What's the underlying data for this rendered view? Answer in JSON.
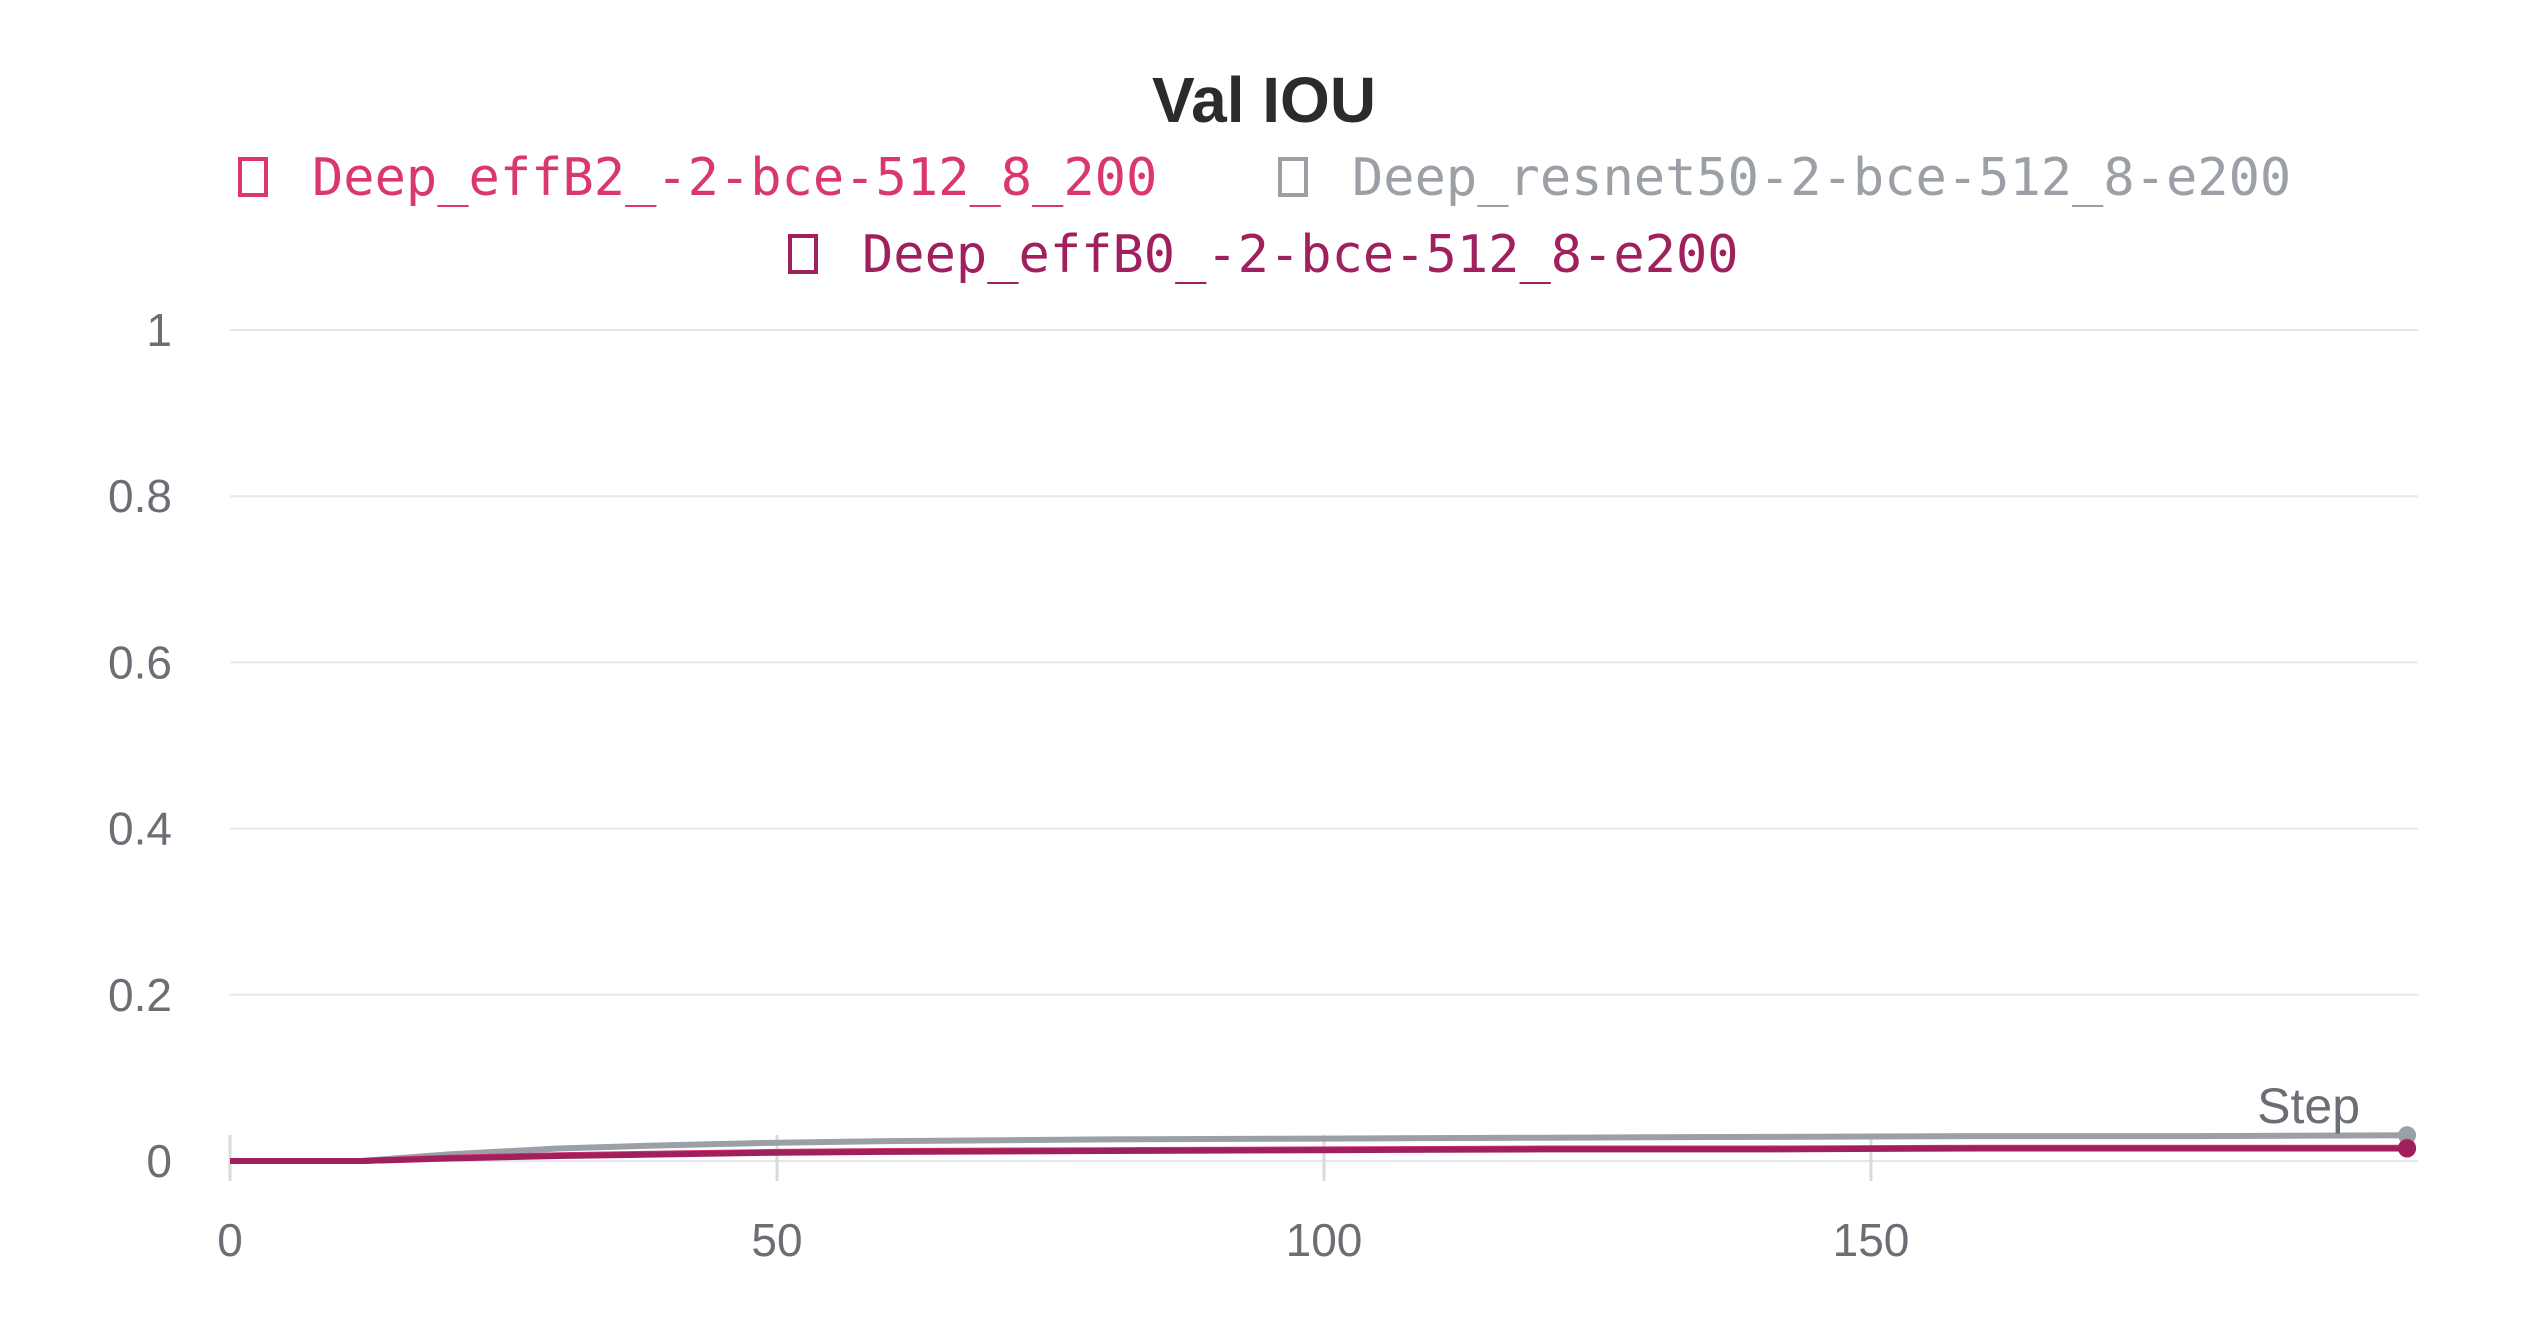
{
  "chart_data": {
    "type": "line",
    "title": "Val IOU",
    "xlabel": "Step",
    "ylabel": "",
    "xlim": [
      0,
      200
    ],
    "ylim": [
      0,
      1
    ],
    "x_ticks": [
      0,
      50,
      100,
      150
    ],
    "y_ticks": [
      0,
      0.2,
      0.4,
      0.6,
      0.8,
      1
    ],
    "y_tick_labels": [
      "0",
      "0.2",
      "0.4",
      "0.6",
      "0.8",
      "1"
    ],
    "grid": true,
    "legend_placement": "top",
    "series": [
      {
        "name": "Deep_effB2_-2-bce-512_8_200",
        "color": "#d9376e",
        "x": [
          0,
          12,
          20,
          30,
          40,
          50,
          60,
          80,
          100,
          120,
          140,
          160,
          180,
          199
        ],
        "y": [
          0,
          0,
          0.004,
          0.007,
          0.009,
          0.011,
          0.012,
          0.013,
          0.014,
          0.015,
          0.015,
          0.016,
          0.016,
          0.016
        ]
      },
      {
        "name": "Deep_resnet50-2-bce-512_8-e200",
        "color": "#9aa0a6",
        "x": [
          0,
          12,
          20,
          30,
          40,
          50,
          60,
          80,
          100,
          120,
          140,
          160,
          180,
          199
        ],
        "y": [
          0,
          0,
          0.008,
          0.015,
          0.019,
          0.022,
          0.024,
          0.026,
          0.027,
          0.028,
          0.029,
          0.03,
          0.03,
          0.031
        ]
      },
      {
        "name": "Deep_effB0_-2-bce-512_8-e200",
        "color": "#a0205e",
        "x": [
          0,
          12,
          20,
          30,
          40,
          50,
          60,
          80,
          100,
          120,
          140,
          160,
          180,
          199
        ],
        "y": [
          0,
          0,
          0.003,
          0.006,
          0.008,
          0.01,
          0.011,
          0.012,
          0.013,
          0.014,
          0.014,
          0.015,
          0.015,
          0.015
        ]
      }
    ]
  }
}
